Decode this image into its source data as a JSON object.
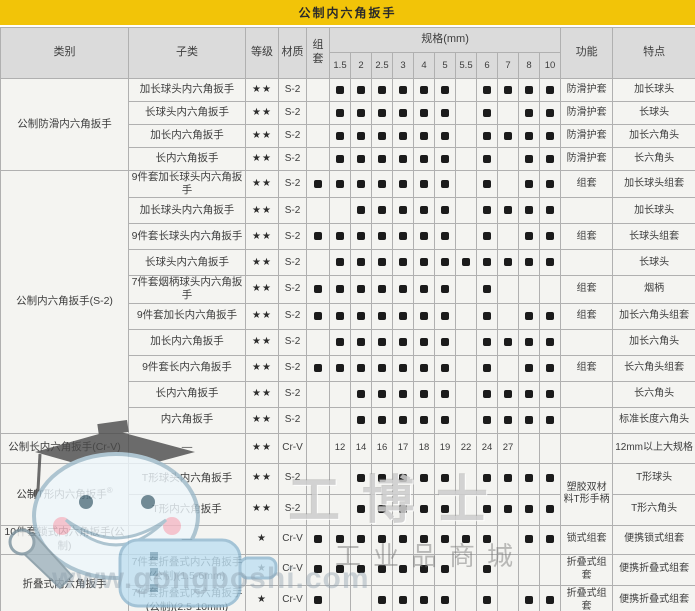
{
  "title": "公制内六角扳手",
  "colors": {
    "title_bg": "#F2C408",
    "header_bg": "#DBDBDB",
    "body_bg": "#F4F4F1",
    "grid": "#B0B0B0",
    "dot": "#1B1B1B"
  },
  "table": {
    "headers": {
      "category": "类别",
      "sub": "子类",
      "grade": "等级",
      "material": "材质",
      "set": "组套",
      "spec": "规格(mm)",
      "function": "功能",
      "feature": "特点"
    },
    "spec_columns": [
      "1.5",
      "2",
      "2.5",
      "3",
      "4",
      "5",
      "5.5",
      "6",
      "7",
      "8",
      "10"
    ],
    "groups": [
      {
        "category": "公制防滑内六角扳手",
        "rows": [
          {
            "sub": "加长球头内六角扳手",
            "grade": "★★",
            "material": "S-2",
            "set": false,
            "sizes": [
              "1.5",
              "2",
              "2.5",
              "3",
              "4",
              "5",
              "6",
              "7",
              "8",
              "10"
            ],
            "function": "防滑护套",
            "feature": "加长球头"
          },
          {
            "sub": "长球头内六角扳手",
            "grade": "★★",
            "material": "S-2",
            "set": false,
            "sizes": [
              "1.5",
              "2",
              "2.5",
              "3",
              "4",
              "5",
              "6",
              "8",
              "10"
            ],
            "function": "防滑护套",
            "feature": "长球头"
          },
          {
            "sub": "加长内六角扳手",
            "grade": "★★",
            "material": "S-2",
            "set": false,
            "sizes": [
              "1.5",
              "2",
              "2.5",
              "3",
              "4",
              "5",
              "6",
              "7",
              "8",
              "10"
            ],
            "function": "防滑护套",
            "feature": "加长六角头"
          },
          {
            "sub": "长内六角扳手",
            "grade": "★★",
            "material": "S-2",
            "set": false,
            "sizes": [
              "1.5",
              "2",
              "2.5",
              "3",
              "4",
              "5",
              "6",
              "8",
              "10"
            ],
            "function": "防滑护套",
            "feature": "长六角头"
          }
        ]
      },
      {
        "category": "公制内六角扳手(S-2)",
        "rows": [
          {
            "sub": "9件套加长球头内六角扳手",
            "grade": "★★",
            "material": "S-2",
            "set": true,
            "sizes": [
              "1.5",
              "2",
              "2.5",
              "3",
              "4",
              "5",
              "6",
              "8",
              "10"
            ],
            "function": "组套",
            "feature": "加长球头组套"
          },
          {
            "sub": "加长球头内六角扳手",
            "grade": "★★",
            "material": "S-2",
            "set": false,
            "sizes": [
              "2",
              "2.5",
              "3",
              "4",
              "5",
              "6",
              "7",
              "8",
              "10"
            ],
            "function": "",
            "feature": "加长球头"
          },
          {
            "sub": "9件套长球头内六角扳手",
            "grade": "★★",
            "material": "S-2",
            "set": true,
            "sizes": [
              "1.5",
              "2",
              "2.5",
              "3",
              "4",
              "5",
              "6",
              "8",
              "10"
            ],
            "function": "组套",
            "feature": "长球头组套"
          },
          {
            "sub": "长球头内六角扳手",
            "grade": "★★",
            "material": "S-2",
            "set": false,
            "sizes": [
              "1.5",
              "2",
              "2.5",
              "3",
              "4",
              "5",
              "5.5",
              "6",
              "7",
              "8",
              "10"
            ],
            "function": "",
            "feature": "长球头"
          },
          {
            "sub": "7件套烟柄球头内六角扳手",
            "grade": "★★",
            "material": "S-2",
            "set": true,
            "sizes": [
              "1.5",
              "2",
              "2.5",
              "3",
              "4",
              "5",
              "6"
            ],
            "function": "组套",
            "feature": "烟柄"
          },
          {
            "sub": "9件套加长内六角扳手",
            "grade": "★★",
            "material": "S-2",
            "set": true,
            "sizes": [
              "1.5",
              "2",
              "2.5",
              "3",
              "4",
              "5",
              "6",
              "8",
              "10"
            ],
            "function": "组套",
            "feature": "加长六角头组套"
          },
          {
            "sub": "加长内六角扳手",
            "grade": "★★",
            "material": "S-2",
            "set": false,
            "sizes": [
              "1.5",
              "2",
              "2.5",
              "3",
              "4",
              "5",
              "6",
              "7",
              "8",
              "10"
            ],
            "function": "",
            "feature": "加长六角头"
          },
          {
            "sub": "9件套长内六角扳手",
            "grade": "★★",
            "material": "S-2",
            "set": true,
            "sizes": [
              "1.5",
              "2",
              "2.5",
              "3",
              "4",
              "5",
              "6",
              "8",
              "10"
            ],
            "function": "组套",
            "feature": "长六角头组套"
          },
          {
            "sub": "长内六角扳手",
            "grade": "★★",
            "material": "S-2",
            "set": false,
            "sizes": [
              "2",
              "2.5",
              "3",
              "4",
              "5",
              "6",
              "7",
              "8",
              "10"
            ],
            "function": "",
            "feature": "长六角头"
          },
          {
            "sub": "内六角扳手",
            "grade": "★★",
            "material": "S-2",
            "set": false,
            "sizes": [
              "2",
              "2.5",
              "3",
              "4",
              "5",
              "6",
              "7",
              "8",
              "10"
            ],
            "function": "",
            "feature": "标准长度六角头"
          }
        ]
      },
      {
        "category": "公制长内六角扳手(Cr-V)",
        "rows": [
          {
            "sub": "—",
            "grade": "★★",
            "material": "Cr-V",
            "set": false,
            "values": [
              "12",
              "14",
              "16",
              "17",
              "18",
              "19",
              "22",
              "24",
              "27",
              "",
              ""
            ],
            "function": "",
            "feature": "12mm以上大规格"
          }
        ]
      },
      {
        "category": "公制T形内六角扳手",
        "category_sup": "®",
        "group_function": "塑胶双材料T形手柄",
        "rows": [
          {
            "sub": "T形球头内六角扳手",
            "grade": "★★",
            "material": "S-2",
            "set": false,
            "sizes": [
              "2",
              "2.5",
              "3",
              "4",
              "5",
              "6",
              "7",
              "8",
              "10"
            ],
            "feature": "T形球头"
          },
          {
            "sub": "T形内六角扳手",
            "grade": "★★",
            "material": "S-2",
            "set": false,
            "sizes": [
              "2",
              "2.5",
              "3",
              "4",
              "5",
              "6",
              "7",
              "8",
              "10"
            ],
            "feature": "T形六角头"
          }
        ]
      },
      {
        "category": "10件套锁式内六角扳手(公制)",
        "rows": [
          {
            "sub": "—",
            "grade": "★",
            "material": "Cr-V",
            "set": true,
            "sizes": [
              "1.5",
              "2",
              "2.5",
              "3",
              "4",
              "5",
              "5.5",
              "6",
              "8",
              "10"
            ],
            "function": "锁式组套",
            "feature": "便携锁式组套"
          }
        ]
      },
      {
        "category": "折叠式内六角扳手",
        "rows": [
          {
            "sub": "7件套折叠式内六角扳手(公制)(1.5-6mm)",
            "grade": "★",
            "material": "Cr-V",
            "set": true,
            "sizes": [
              "1.5",
              "2",
              "2.5",
              "3",
              "4",
              "5",
              "6"
            ],
            "function": "折叠式组套",
            "feature": "便携折叠式组套"
          },
          {
            "sub": "7件套折叠式内六角扳手(公制)(2.5-10mm)",
            "grade": "★",
            "material": "Cr-V",
            "set": true,
            "sizes": [
              "2.5",
              "3",
              "4",
              "5",
              "6",
              "8",
              "10"
            ],
            "function": "折叠式组套",
            "feature": "便携折叠式组套"
          }
        ]
      }
    ]
  },
  "watermark": {
    "brand": "工博士",
    "mall": "工业品商城",
    "url": "www.gongboshi.com"
  }
}
